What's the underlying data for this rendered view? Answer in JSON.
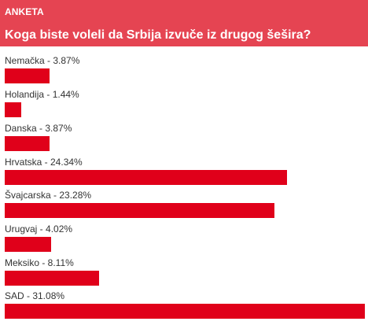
{
  "poll": {
    "tag": "ANKETA",
    "question": "Koga biste voleli da Srbija izvuče iz drugog šešira?",
    "header_color": "#e54452",
    "bar_color": "#e0001a",
    "options": [
      {
        "label": "Nemačka - 3.87%",
        "percent": 3.87
      },
      {
        "label": "Holandija - 1.44%",
        "percent": 1.44
      },
      {
        "label": "Danska - 3.87%",
        "percent": 3.87
      },
      {
        "label": "Hrvatska - 24.34%",
        "percent": 24.34
      },
      {
        "label": "Švajcarska - 23.28%",
        "percent": 23.28
      },
      {
        "label": "Urugvaj - 4.02%",
        "percent": 4.02
      },
      {
        "label": "Meksiko - 8.11%",
        "percent": 8.11
      },
      {
        "label": "SAD - 31.08%",
        "percent": 31.08
      }
    ]
  }
}
